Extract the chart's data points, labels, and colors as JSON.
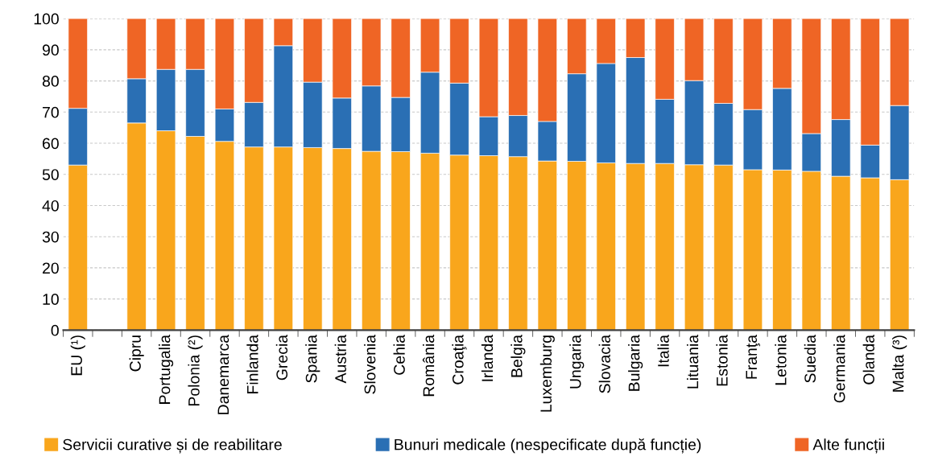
{
  "chart_data": {
    "type": "bar",
    "stacked": true,
    "categories": [
      "EU (¹)",
      null,
      "Cipru",
      "Portugalia",
      "Polonia (²)",
      "Danemarca",
      "Finlanda",
      "Grecia",
      "Spania",
      "Austria",
      "Slovenia",
      "Cehia",
      "România",
      "Croaţia",
      "Irlanda",
      "Belgia",
      "Luxemburg",
      "Ungaria",
      "Slovacia",
      "Bulgaria",
      "Italia",
      "Lituania",
      "Estonia",
      "Franţa",
      "Letonia",
      "Suedia",
      "Germania",
      "Olanda",
      "Malta (³)"
    ],
    "series": [
      {
        "name": "Servicii curative și de reabilitare",
        "color": "#f9a61c",
        "values": [
          53.0,
          null,
          66.5,
          64.0,
          62.2,
          60.6,
          58.8,
          58.8,
          58.6,
          58.3,
          57.4,
          57.3,
          56.8,
          56.2,
          56.0,
          55.7,
          54.3,
          54.2,
          53.7,
          53.5,
          53.5,
          53.1,
          53.0,
          51.5,
          51.4,
          51.0,
          49.4,
          48.9,
          48.3
        ]
      },
      {
        "name": "Bunuri medicale (nespecificate după funcție)",
        "color": "#2a6fb4",
        "values": [
          18.2,
          null,
          14.2,
          19.7,
          21.5,
          10.4,
          14.3,
          32.5,
          21.0,
          16.2,
          21.0,
          17.4,
          26.0,
          23.1,
          12.5,
          13.2,
          12.7,
          28.1,
          31.9,
          34.0,
          20.6,
          27.0,
          19.8,
          19.3,
          26.2,
          12.1,
          18.2,
          10.5,
          23.8
        ]
      },
      {
        "name": "Alte funcții",
        "color": "#ef6525",
        "values": [
          28.8,
          null,
          19.3,
          16.3,
          16.3,
          29.0,
          26.9,
          8.7,
          20.4,
          25.5,
          21.6,
          25.3,
          17.2,
          20.7,
          31.5,
          31.1,
          33.0,
          17.7,
          14.4,
          12.5,
          25.9,
          19.9,
          27.2,
          29.2,
          22.4,
          36.9,
          32.4,
          40.6,
          27.9
        ]
      }
    ],
    "ylim": [
      0,
      100
    ],
    "yticks": [
      0,
      10,
      20,
      30,
      40,
      50,
      60,
      70,
      80,
      90,
      100
    ],
    "grid": "y",
    "legend": "bottom"
  }
}
